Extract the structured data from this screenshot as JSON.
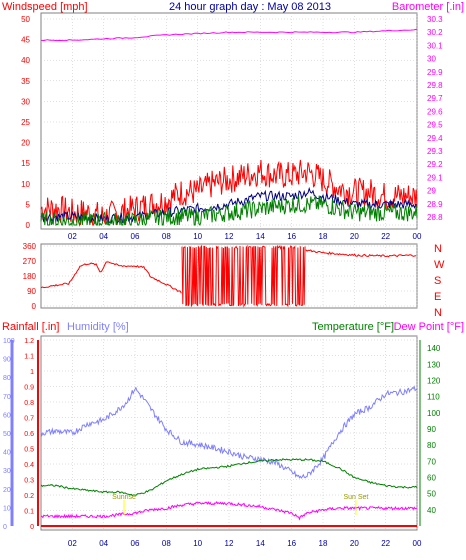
{
  "header": {
    "title": "24 hour graph day : May 08 2013",
    "left_label": "Windspeed [mph]",
    "right_label": "Barometer [.in]"
  },
  "colors": {
    "background": "#ffffff",
    "grid": "#c0c0c0",
    "title": "#0000a0",
    "wind": "#ff0000",
    "gust": "#ff0000",
    "wind_avg": "#008000",
    "wind_mid": "#000080",
    "barometer": "#ff00ff",
    "direction": "#ff0000",
    "rain": "#ff0000",
    "humidity": "#8080ff",
    "temperature": "#008000",
    "dewpoint": "#ff00ff",
    "sun_marker": "#ffff00"
  },
  "x_ticks": [
    "02",
    "04",
    "06",
    "08",
    "10",
    "12",
    "14",
    "16",
    "18",
    "20",
    "22",
    "00"
  ],
  "markers": {
    "sunrise": {
      "label": "Sunrise",
      "hour": 5.3
    },
    "sunset": {
      "label": "Sun Set",
      "hour": 20.1
    }
  },
  "chart_data": [
    {
      "type": "line",
      "name": "wind-barometer",
      "title": "24 hour graph day : May 08 2013",
      "ylabel_left": "Windspeed [mph]",
      "ylabel_right": "Barometer [.in]",
      "ylim_left": [
        0,
        50
      ],
      "ylim_right": [
        28.8,
        30.3
      ],
      "left_ticks": [
        "0",
        "5",
        "10",
        "15",
        "20",
        "25",
        "30",
        "35",
        "40",
        "45",
        "50"
      ],
      "right_ticks": [
        "28.8",
        "28.9",
        "29",
        "29.1",
        "29.2",
        "29.3",
        "29.4",
        "29.5",
        "29.6",
        "29.7",
        "29.8",
        "29.9",
        "30",
        "30.1",
        "30.2",
        "30.3"
      ],
      "series": [
        {
          "key": "gust",
          "x": [
            0,
            1,
            2,
            3,
            4,
            5,
            6,
            7,
            8,
            9,
            10,
            11,
            12,
            13,
            14,
            15,
            16,
            17,
            18,
            19,
            20,
            21,
            22,
            23,
            24
          ],
          "y": [
            4,
            4,
            3,
            3,
            2,
            3,
            4,
            5,
            6,
            8,
            8,
            10,
            11,
            12,
            13,
            12,
            12,
            13,
            11,
            9,
            8,
            8,
            7,
            7,
            7
          ]
        },
        {
          "key": "wind_mid",
          "x": [
            0,
            2,
            4,
            6,
            8,
            10,
            12,
            13,
            14,
            16,
            17,
            18,
            20,
            22,
            24
          ],
          "y": [
            2,
            2,
            1.5,
            2,
            3,
            4,
            5,
            6,
            7,
            7,
            8,
            7,
            5,
            5,
            5
          ]
        },
        {
          "key": "wind_avg",
          "x": [
            0,
            2,
            4,
            6,
            8,
            10,
            12,
            14,
            16,
            17,
            18,
            20,
            22,
            24
          ],
          "y": [
            1,
            1,
            1,
            1,
            2,
            2,
            3,
            4,
            5,
            5,
            5,
            3,
            3,
            3
          ]
        },
        {
          "key": "barometer",
          "x": [
            0,
            2,
            4,
            6,
            8,
            10,
            12,
            14,
            16,
            18,
            20,
            22,
            24
          ],
          "y": [
            30.14,
            30.14,
            30.15,
            30.16,
            30.18,
            30.19,
            30.2,
            30.2,
            30.2,
            30.2,
            30.2,
            30.21,
            30.22
          ]
        }
      ]
    },
    {
      "type": "line",
      "name": "wind-direction",
      "ylim_left": [
        0,
        360
      ],
      "left_ticks": [
        "0",
        "90",
        "180",
        "270",
        "360"
      ],
      "right_ticks": [
        "N",
        "W",
        "S",
        "E",
        "N"
      ],
      "series": [
        {
          "key": "direction",
          "x": [
            0,
            1,
            1.8,
            2.5,
            3,
            3.5,
            3.8,
            4.2,
            5,
            6,
            6.6,
            7,
            8,
            9
          ],
          "y": [
            110,
            125,
            135,
            240,
            255,
            250,
            200,
            270,
            240,
            240,
            230,
            175,
            130,
            80
          ]
        },
        {
          "key": "direction",
          "x": [
            16.9,
            18,
            20,
            22,
            24
          ],
          "y": [
            335,
            320,
            305,
            300,
            305
          ]
        }
      ],
      "scatter_band": {
        "x_start": 9,
        "x_end": 16.9,
        "y_low": 0,
        "y_high": 360
      }
    },
    {
      "type": "line",
      "name": "rain-humidity-temp",
      "ylabel_rain": "Rainfall [.in]",
      "ylabel_humidity": "Humidity [%]",
      "ylabel_temp": "Temperature [°F]",
      "ylabel_dew": "Dew Point [°F]",
      "ylim_rain": [
        0,
        1.2
      ],
      "ylim_humidity": [
        0,
        100
      ],
      "ylim_temp": [
        30,
        145
      ],
      "rain_ticks": [
        "0",
        "0.1",
        "0.2",
        "0.3",
        "0.4",
        "0.5",
        "0.6",
        "0.7",
        "0.8",
        "0.9",
        "1",
        "1.1",
        "1.2"
      ],
      "humidity_ticks": [
        "0",
        "10",
        "20",
        "30",
        "40",
        "50",
        "60",
        "70",
        "80",
        "90",
        "100"
      ],
      "temp_ticks": [
        "40",
        "50",
        "60",
        "70",
        "80",
        "90",
        "100",
        "110",
        "120",
        "130",
        "140"
      ],
      "series": [
        {
          "key": "rain",
          "x": [
            0,
            24
          ],
          "y": [
            0,
            0
          ]
        },
        {
          "key": "humidity",
          "x": [
            0,
            1,
            2,
            3,
            4,
            5,
            5.5,
            6,
            6.5,
            7,
            8,
            9,
            10,
            11,
            12,
            13,
            14,
            15,
            16,
            16.5,
            17,
            18,
            19,
            20,
            21,
            22,
            23,
            24
          ],
          "y": [
            50,
            51,
            50,
            55,
            57,
            63,
            67,
            74,
            69,
            63,
            52,
            45,
            44,
            42,
            40,
            37,
            36,
            34,
            29,
            26,
            27,
            36,
            50,
            60,
            64,
            71,
            72,
            74
          ]
        },
        {
          "key": "temperature",
          "x": [
            0,
            1,
            2,
            3,
            4,
            5,
            6,
            7,
            8,
            9,
            10,
            11,
            12,
            13,
            14,
            15,
            16,
            17,
            18,
            19,
            20,
            21,
            22,
            23,
            24
          ],
          "y": [
            55,
            55,
            53,
            52,
            51,
            51,
            49,
            52,
            58,
            62,
            65,
            66,
            67,
            69,
            70,
            71,
            71,
            71,
            70,
            66,
            60,
            57,
            55,
            54,
            54
          ]
        },
        {
          "key": "dewpoint",
          "x": [
            0,
            1,
            2,
            3,
            4,
            5,
            6,
            7,
            8,
            9,
            10,
            11,
            12,
            13,
            14,
            15,
            16,
            16.5,
            17,
            18,
            19,
            20,
            21,
            22,
            23,
            24
          ],
          "y": [
            36,
            36,
            36,
            36,
            36,
            37,
            38,
            40,
            41,
            43,
            44,
            44,
            44,
            43,
            42,
            40,
            38,
            35,
            38,
            40,
            41,
            41,
            41,
            41,
            41,
            41
          ]
        }
      ]
    }
  ]
}
